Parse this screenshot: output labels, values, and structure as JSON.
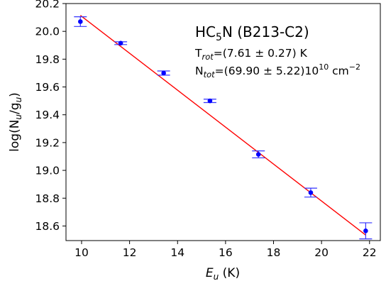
{
  "chart_data": {
    "type": "scatter",
    "title": "HC5N (B213-C2)",
    "annotations": {
      "title_main": "HC",
      "title_sub": "5",
      "title_rest": "N (B213-C2)",
      "trot_main": "T",
      "trot_sub": "rot",
      "trot_rest": "=(7.61 ± 0.27) K",
      "ntot_main": "N",
      "ntot_sub": "tot",
      "ntot_rest": "=(69.90 ± 5.22)10",
      "ntot_exp": "10",
      "ntot_unit": " cm",
      "ntot_unit_exp": "−2"
    },
    "xlabel": {
      "main": "E",
      "sub": "u",
      "rest": " (K)"
    },
    "ylabel": {
      "pre": "log(N",
      "sub1": "u",
      "mid": "/g",
      "sub2": "u",
      "post": ")"
    },
    "xlim": [
      9.35,
      22.45
    ],
    "ylim": [
      18.495,
      20.2
    ],
    "xticks": [
      10,
      12,
      14,
      16,
      18,
      20,
      22
    ],
    "yticks": [
      18.6,
      18.8,
      19.0,
      19.2,
      19.4,
      19.6,
      19.8,
      20.0,
      20.2
    ],
    "xtick_labels": [
      "10",
      "12",
      "14",
      "16",
      "18",
      "20",
      "22"
    ],
    "ytick_labels": [
      "18.6",
      "18.8",
      "19.0",
      "19.2",
      "19.4",
      "19.6",
      "19.8",
      "20.0",
      "20.2"
    ],
    "points": [
      {
        "x": 9.95,
        "y": 20.07,
        "err": 0.035
      },
      {
        "x": 11.63,
        "y": 19.915,
        "err": 0.01
      },
      {
        "x": 13.42,
        "y": 19.7,
        "err": 0.015
      },
      {
        "x": 15.35,
        "y": 19.5,
        "err": 0.012
      },
      {
        "x": 17.37,
        "y": 19.115,
        "err": 0.025
      },
      {
        "x": 19.55,
        "y": 18.84,
        "err": 0.032
      },
      {
        "x": 21.84,
        "y": 18.565,
        "err": 0.058
      }
    ],
    "fit": {
      "x": [
        9.95,
        21.84
      ],
      "y": [
        20.115,
        18.535
      ]
    },
    "colors": {
      "points": "#0000ff",
      "errorbars": "#3333ff",
      "fit": "#ff0000"
    }
  }
}
